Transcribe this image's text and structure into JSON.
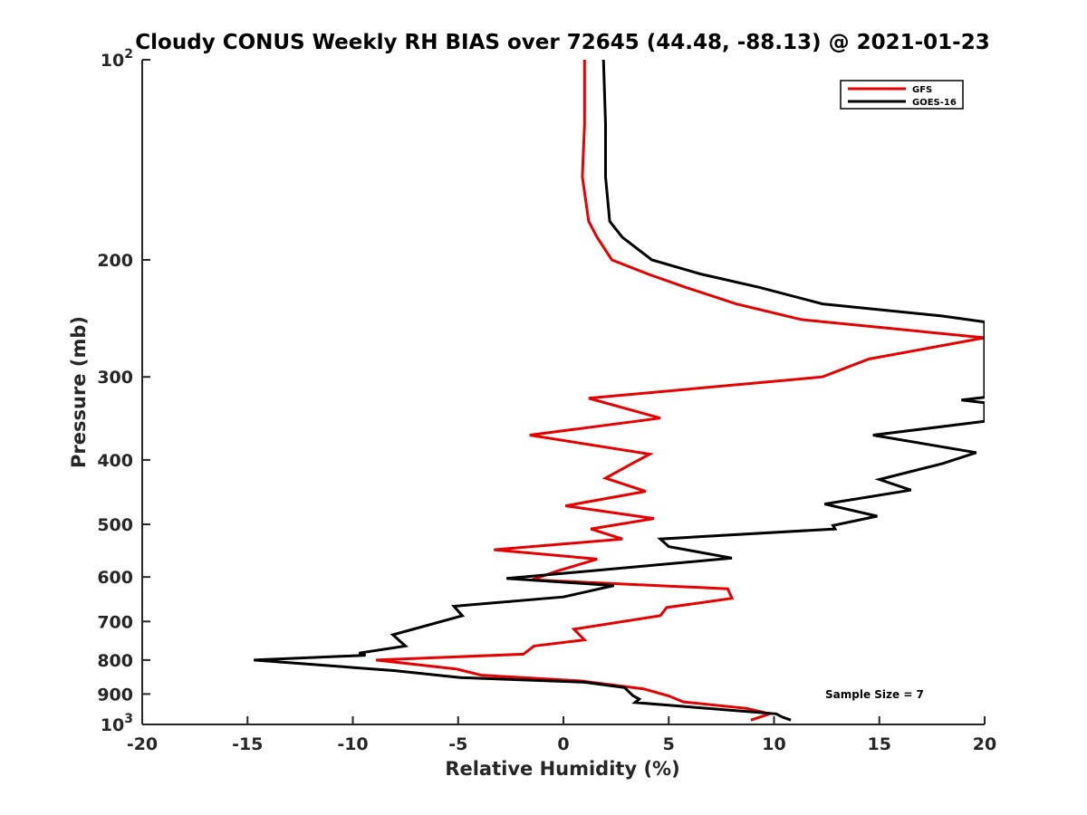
{
  "chart_data": {
    "type": "line",
    "title": "Cloudy CONUS Weekly RH BIAS over 72645 (44.48, -88.13) @ 2021-01-23",
    "xlabel": "Relative Humidity (%)",
    "ylabel": "Pressure (mb)",
    "xlim": [
      -20,
      20
    ],
    "ylim": [
      100,
      1000
    ],
    "y_scale": "log",
    "y_reversed": true,
    "grid": false,
    "legend_position": "top-right",
    "x_ticks": [
      "-20",
      "-15",
      "-10",
      "-5",
      "0",
      "5",
      "10",
      "15",
      "20"
    ],
    "y_ticks": [
      {
        "value": 100,
        "base": "10",
        "exp": "2"
      },
      {
        "value": 200,
        "label": "200"
      },
      {
        "value": 300,
        "label": "300"
      },
      {
        "value": 400,
        "label": "400"
      },
      {
        "value": 500,
        "label": "500"
      },
      {
        "value": 600,
        "label": "600"
      },
      {
        "value": 700,
        "label": "700"
      },
      {
        "value": 800,
        "label": "800"
      },
      {
        "value": 900,
        "label": "900"
      },
      {
        "value": 1000,
        "base": "10",
        "exp": "3"
      }
    ],
    "annotation": "Sample Size = 7",
    "series": [
      {
        "name": "GFS",
        "color": "#e60000",
        "points": [
          [
            1.0,
            100
          ],
          [
            1.0,
            125
          ],
          [
            0.9,
            150
          ],
          [
            1.2,
            175
          ],
          [
            1.6,
            185
          ],
          [
            2.3,
            200
          ],
          [
            4.0,
            210
          ],
          [
            5.8,
            220
          ],
          [
            8.2,
            233
          ],
          [
            11.3,
            246
          ],
          [
            20.0,
            262
          ],
          [
            14.5,
            282
          ],
          [
            12.3,
            300
          ],
          [
            1.2,
            323
          ],
          [
            4.6,
            346
          ],
          [
            -1.6,
            367
          ],
          [
            4.1,
            392
          ],
          [
            3.2,
            406
          ],
          [
            2.0,
            426
          ],
          [
            3.9,
            446
          ],
          [
            0.1,
            469
          ],
          [
            4.3,
            490
          ],
          [
            1.3,
            508
          ],
          [
            2.8,
            526
          ],
          [
            -3.3,
            546
          ],
          [
            1.6,
            564
          ],
          [
            -0.3,
            588
          ],
          [
            -1.5,
            606
          ],
          [
            7.8,
            625
          ],
          [
            8.0,
            646
          ],
          [
            4.9,
            667
          ],
          [
            4.6,
            686
          ],
          [
            0.5,
            719
          ],
          [
            1.0,
            746
          ],
          [
            -1.4,
            762
          ],
          [
            -1.9,
            784
          ],
          [
            -8.9,
            800
          ],
          [
            -5.1,
            825
          ],
          [
            -3.9,
            843
          ],
          [
            0.8,
            860
          ],
          [
            3.8,
            884
          ],
          [
            5.0,
            906
          ],
          [
            5.7,
            925
          ],
          [
            8.7,
            946
          ],
          [
            9.8,
            964
          ],
          [
            8.9,
            985
          ]
        ]
      },
      {
        "name": "GOES-16",
        "color": "#000000",
        "points": [
          [
            1.9,
            100
          ],
          [
            2.0,
            125
          ],
          [
            2.0,
            150
          ],
          [
            2.2,
            175
          ],
          [
            2.8,
            185
          ],
          [
            4.2,
            200
          ],
          [
            6.5,
            210
          ],
          [
            9.3,
            220
          ],
          [
            12.3,
            233
          ],
          [
            18.0,
            243
          ],
          [
            20.0,
            248
          ],
          [
            20.0,
            322
          ],
          [
            18.9,
            325
          ],
          [
            20.0,
            328
          ],
          [
            20.0,
            350
          ],
          [
            14.7,
            367
          ],
          [
            19.6,
            390
          ],
          [
            18.0,
            405
          ],
          [
            15.0,
            428
          ],
          [
            16.5,
            444
          ],
          [
            12.4,
            466
          ],
          [
            14.9,
            486
          ],
          [
            12.8,
            502
          ],
          [
            12.9,
            508
          ],
          [
            4.6,
            526
          ],
          [
            5.0,
            540
          ],
          [
            8.0,
            562
          ],
          [
            -2.7,
            603
          ],
          [
            2.4,
            618
          ],
          [
            0.0,
            643
          ],
          [
            -5.2,
            664
          ],
          [
            -4.8,
            686
          ],
          [
            -8.1,
            733
          ],
          [
            -7.5,
            762
          ],
          [
            -9.7,
            781
          ],
          [
            -9.4,
            787
          ],
          [
            -14.7,
            800
          ],
          [
            -8.0,
            830
          ],
          [
            -4.9,
            850
          ],
          [
            1.0,
            864
          ],
          [
            2.9,
            880
          ],
          [
            3.3,
            905
          ],
          [
            3.6,
            916
          ],
          [
            3.4,
            927
          ],
          [
            10.1,
            964
          ],
          [
            10.4,
            975
          ],
          [
            10.8,
            985
          ]
        ]
      }
    ]
  }
}
